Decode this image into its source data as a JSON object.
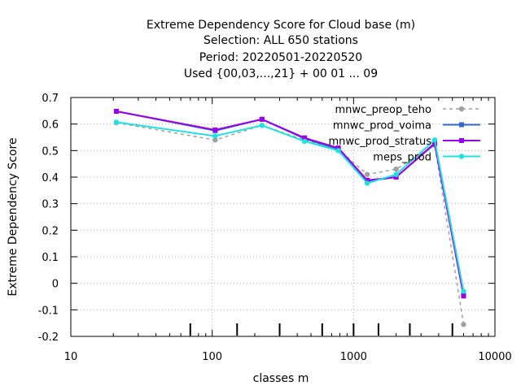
{
  "chart_data": {
    "type": "line",
    "title_lines": [
      "Extreme Dependency Score  for Cloud base (m)",
      "Selection: ALL    650 stations",
      "Period: 20220501-20220520",
      "Used {00,03,...,21} + 00 01 ... 09"
    ],
    "xlabel": "classes m",
    "ylabel": "Extreme Dependency Score",
    "x_scale": "log",
    "xlim": [
      10,
      10000
    ],
    "ylim": [
      -0.2,
      0.7
    ],
    "x_ticks": [
      {
        "value": 10,
        "label": "10"
      },
      {
        "value": 100,
        "label": "100"
      },
      {
        "value": 1000,
        "label": "1000"
      },
      {
        "value": 10000,
        "label": "10000"
      }
    ],
    "y_ticks": [
      {
        "value": -0.2,
        "label": "-0.2"
      },
      {
        "value": -0.1,
        "label": "-0.1"
      },
      {
        "value": 0,
        "label": "0"
      },
      {
        "value": 0.1,
        "label": "0.1"
      },
      {
        "value": 0.2,
        "label": "0.2"
      },
      {
        "value": 0.3,
        "label": "0.3"
      },
      {
        "value": 0.4,
        "label": "0.4"
      },
      {
        "value": 0.5,
        "label": "0.5"
      },
      {
        "value": 0.6,
        "label": "0.6"
      },
      {
        "value": 0.7,
        "label": "0.7"
      }
    ],
    "grid": true,
    "legend_position": "top-right",
    "class_markers": [
      70,
      150,
      300,
      600,
      1000,
      1500,
      2500,
      5000
    ],
    "x": [
      21,
      105,
      225,
      450,
      780,
      1250,
      2000,
      3750,
      6000
    ],
    "series": [
      {
        "name": "mnwc_preop_teho",
        "color": "#a0a0a0",
        "dashed": true,
        "marker": "circle",
        "values": [
          0.605,
          0.54,
          0.595,
          0.54,
          0.505,
          0.41,
          0.43,
          0.52,
          -0.155
        ]
      },
      {
        "name": "mnwc_prod_voima",
        "color": "#3366cc",
        "dashed": false,
        "marker": "square",
        "values": [
          0.648,
          0.575,
          0.618,
          0.545,
          0.505,
          0.385,
          0.4,
          0.525,
          -0.045
        ]
      },
      {
        "name": "mnwc_prod_stratus",
        "color": "#9a00e6",
        "dashed": false,
        "marker": "square",
        "values": [
          0.648,
          0.578,
          0.618,
          0.548,
          0.51,
          0.388,
          0.4,
          0.528,
          -0.048
        ]
      },
      {
        "name": "meps_prod",
        "color": "#20e0e0",
        "dashed": false,
        "marker": "circle",
        "values": [
          0.607,
          0.555,
          0.595,
          0.535,
          0.5,
          0.377,
          0.41,
          0.54,
          -0.03
        ]
      }
    ]
  }
}
